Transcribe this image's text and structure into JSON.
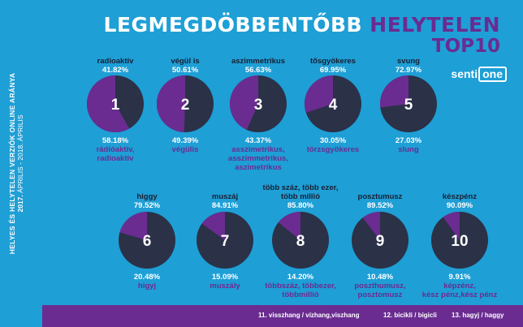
{
  "header": {
    "title_part1": "LEGMEGDÖBBENTŐBB",
    "title_part2": "HELYTELEN",
    "title_line2": "TOP10"
  },
  "logo": {
    "part1": "senti",
    "part2": "one"
  },
  "side": {
    "title": "HELYES ÉS HELYTELEN VERZIÓK ONLINE ARÁNYA",
    "subtitle_bold": "2017.",
    "subtitle_rest": " ÁPRILIS - 2018. ÁPRILIS"
  },
  "footer": {
    "items": [
      "11. visszhang / vízhang,viszhang",
      "12. bicikli / bigicli",
      "13. hagyj / haggy"
    ]
  },
  "colors": {
    "background": "#1e9fd6",
    "correct": "#2b3147",
    "incorrect": "#6a2c91",
    "white": "#ffffff"
  },
  "chart_data": {
    "type": "pie",
    "items": [
      {
        "rank": "1",
        "incorrect_label": [
          "radioaktív"
        ],
        "incorrect_value": "41.82%",
        "correct_value": "58.18%",
        "correct_labels": [
          "rádióaktív,",
          "radioaktív"
        ],
        "incorrect_pct": 41.82
      },
      {
        "rank": "2",
        "incorrect_label": [
          "végül is"
        ],
        "incorrect_value": "50.61%",
        "correct_value": "49.39%",
        "correct_labels": [
          "végülis"
        ],
        "incorrect_pct": 50.61
      },
      {
        "rank": "3",
        "incorrect_label": [
          "aszimmetrikus"
        ],
        "incorrect_value": "56.63%",
        "correct_value": "43.37%",
        "correct_labels": [
          "asszimetrikus,",
          "asszimmetrikus,",
          "aszimetrikus"
        ],
        "incorrect_pct": 56.63
      },
      {
        "rank": "4",
        "incorrect_label": [
          "tősgyökeres"
        ],
        "incorrect_value": "69.95%",
        "correct_value": "30.05%",
        "correct_labels": [
          "törzsgyökeres"
        ],
        "incorrect_pct": 69.95
      },
      {
        "rank": "5",
        "incorrect_label": [
          "svung"
        ],
        "incorrect_value": "72.97%",
        "correct_value": "27.03%",
        "correct_labels": [
          "slung"
        ],
        "incorrect_pct": 72.97
      },
      {
        "rank": "6",
        "incorrect_label": [
          "higgy"
        ],
        "incorrect_value": "79.52%",
        "correct_value": "20.48%",
        "correct_labels": [
          "higyj"
        ],
        "incorrect_pct": 79.52
      },
      {
        "rank": "7",
        "incorrect_label": [
          "muszáj"
        ],
        "incorrect_value": "84.91%",
        "correct_value": "15.09%",
        "correct_labels": [
          "muszály"
        ],
        "incorrect_pct": 84.91
      },
      {
        "rank": "8",
        "incorrect_label": [
          "több száz, több ezer,",
          "több millió"
        ],
        "incorrect_value": "85.80%",
        "correct_value": "14.20%",
        "correct_labels": [
          "többszáz, többezer,",
          "többmillió"
        ],
        "incorrect_pct": 85.8
      },
      {
        "rank": "9",
        "incorrect_label": [
          "posztumusz"
        ],
        "incorrect_value": "89.52%",
        "correct_value": "10.48%",
        "correct_labels": [
          "poszthumusz,",
          "posztomusz"
        ],
        "incorrect_pct": 89.52
      },
      {
        "rank": "10",
        "incorrect_label": [
          "készpénz"
        ],
        "incorrect_value": "90.09%",
        "correct_value": "9.91%",
        "correct_labels": [
          "képzénz,",
          "kész pénz,kész pénz"
        ],
        "incorrect_pct": 90.09
      }
    ]
  }
}
